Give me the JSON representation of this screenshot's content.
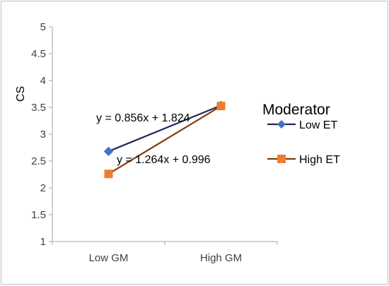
{
  "chart_data": {
    "type": "line",
    "categories": [
      "Low GM",
      "High GM"
    ],
    "ylabel": "CS",
    "ylim": [
      1,
      5
    ],
    "yticks": [
      1,
      1.5,
      2,
      2.5,
      3,
      3.5,
      4,
      4.5,
      5
    ],
    "grid": false,
    "legend": {
      "title": "Moderator",
      "placement": "right"
    },
    "series": [
      {
        "name": "Low ET",
        "values": [
          2.68,
          3.536
        ],
        "color": "#1f2a5c",
        "marker": "diamond",
        "marker_color": "#4472c4",
        "equation": "y = 0.856x + 1.824"
      },
      {
        "name": "High ET",
        "values": [
          2.26,
          3.524
        ],
        "color": "#843c0c",
        "marker": "square",
        "marker_color": "#ed7d31",
        "equation": "y = 1.264x + 0.996"
      }
    ]
  }
}
